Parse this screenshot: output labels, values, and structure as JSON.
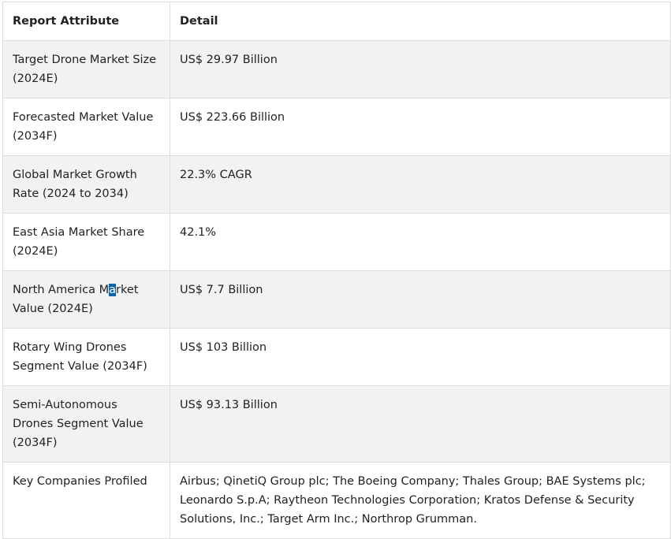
{
  "table": {
    "headers": [
      "Report Attribute",
      "Detail"
    ],
    "rows": [
      {
        "attribute": "Target Drone Market Size (2024E)",
        "detail": "US$ 29.97 Billion"
      },
      {
        "attribute_before": "North America M",
        "attribute_selected": "a",
        "attribute_after": "rket Value (2024E)",
        "detail": "US$ 7.7 Billion"
      },
      {
        "attribute": "Forecasted Market Value (2034F)",
        "detail": "US$ 223.66 Billion"
      },
      {
        "attribute": "Global Market Growth Rate (2024 to 2034)",
        "detail": "22.3% CAGR"
      },
      {
        "attribute": "East Asia Market Share (2024E)",
        "detail": "42.1%"
      },
      {
        "attribute": "Rotary Wing Drones Segment Value (2034F)",
        "detail": "US$ 103 Billion"
      },
      {
        "attribute": "Semi-Autonomous Drones Segment Value (2034F)",
        "detail": "US$ 93.13 Billion"
      },
      {
        "attribute": "Key Companies Profiled",
        "detail": "Airbus; QinetiQ Group plc; The Boeing Company; Thales Group; BAE Systems plc; Leonardo S.p.A; Raytheon Technologies Corporation; Kratos Defense & Security Solutions, Inc.; Target Arm Inc.; Northrop Grumman."
      }
    ]
  }
}
